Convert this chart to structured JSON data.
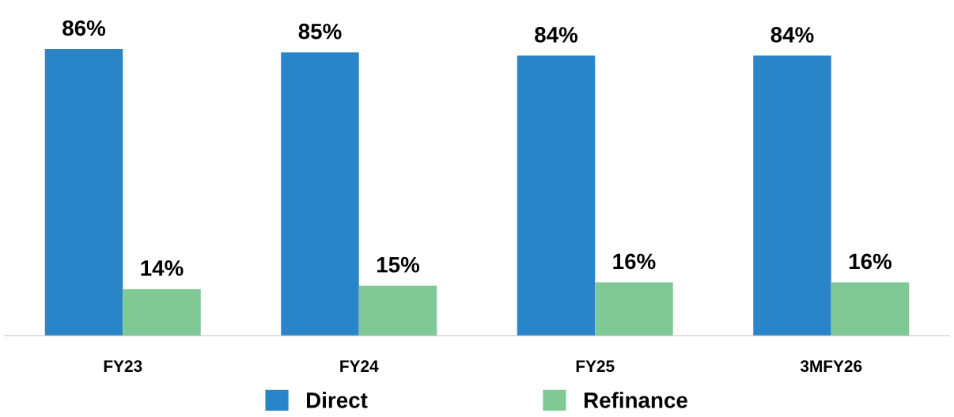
{
  "chart_data": {
    "type": "bar",
    "categories": [
      "FY23",
      "FY24",
      "FY25",
      "3MFY26"
    ],
    "series": [
      {
        "name": "Direct",
        "color": "#2a84c8",
        "values": [
          86,
          85,
          84,
          84
        ],
        "value_labels": [
          "86%",
          "85%",
          "84%",
          "84%"
        ]
      },
      {
        "name": "Refinance",
        "color": "#80c896",
        "values": [
          14,
          15,
          16,
          16
        ],
        "value_labels": [
          "14%",
          "15%",
          "16%",
          "16%"
        ]
      }
    ],
    "legend": "bottom",
    "grid": false,
    "tick_labels": "x"
  }
}
